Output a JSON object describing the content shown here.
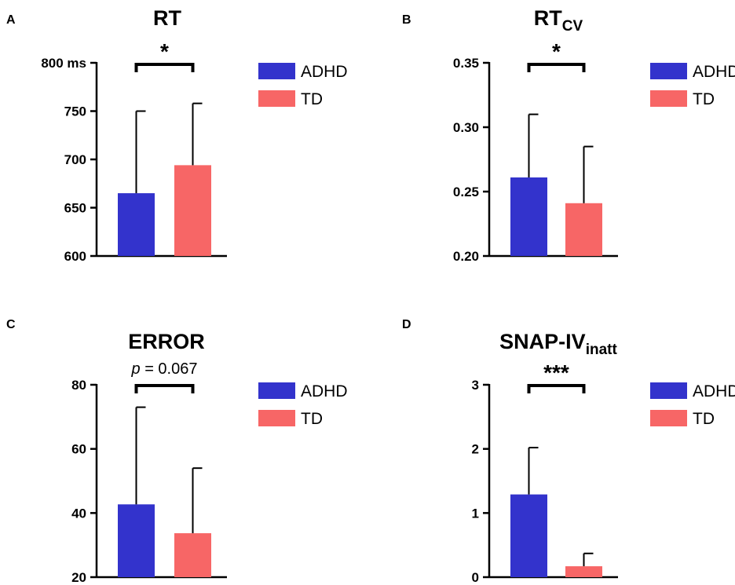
{
  "colors": {
    "adhd": "#3333cc",
    "td": "#f76666",
    "axis": "#000000"
  },
  "chart_data": [
    {
      "id": "A",
      "type": "bar",
      "panel_label": "A",
      "title": "RT",
      "title_sub": "",
      "categories": [
        "ADHD",
        "TD"
      ],
      "values": [
        665,
        694
      ],
      "errors": [
        85,
        64
      ],
      "ylim": [
        600,
        800
      ],
      "yticks": [
        600,
        650,
        700,
        750,
        800
      ],
      "ytick_labels": [
        "600",
        "650",
        "700",
        "750",
        "800 ms"
      ],
      "significance": "*",
      "significance_prefix": "",
      "legend": [
        "ADHD",
        "TD"
      ]
    },
    {
      "id": "B",
      "type": "bar",
      "panel_label": "B",
      "title": "RT",
      "title_sub": "CV",
      "categories": [
        "ADHD",
        "TD"
      ],
      "values": [
        0.261,
        0.241
      ],
      "errors": [
        0.049,
        0.044
      ],
      "ylim": [
        0.2,
        0.35
      ],
      "yticks": [
        0.2,
        0.25,
        0.3,
        0.35
      ],
      "ytick_labels": [
        "0.20",
        "0.25",
        "0.30",
        "0.35"
      ],
      "significance": "*",
      "significance_prefix": "",
      "legend": [
        "ADHD",
        "TD"
      ]
    },
    {
      "id": "C",
      "type": "bar",
      "panel_label": "C",
      "title": "ERROR",
      "title_sub": "",
      "categories": [
        "ADHD",
        "TD"
      ],
      "values": [
        42.7,
        33.7
      ],
      "errors": [
        30.3,
        20.3
      ],
      "ylim": [
        20,
        80
      ],
      "yticks": [
        20,
        40,
        60,
        80
      ],
      "ytick_labels": [
        "20",
        "40",
        "60",
        "80"
      ],
      "significance": " = 0.067",
      "significance_prefix": "p",
      "legend": [
        "ADHD",
        "TD"
      ]
    },
    {
      "id": "D",
      "type": "bar",
      "panel_label": "D",
      "title": "SNAP-IV",
      "title_sub": "inatt",
      "categories": [
        "ADHD",
        "TD"
      ],
      "values": [
        1.29,
        0.17
      ],
      "errors": [
        0.73,
        0.2
      ],
      "ylim": [
        0,
        3
      ],
      "yticks": [
        0,
        1,
        2,
        3
      ],
      "ytick_labels": [
        "0",
        "1",
        "2",
        "3"
      ],
      "significance": "***",
      "significance_prefix": "",
      "legend": [
        "ADHD",
        "TD"
      ]
    }
  ]
}
